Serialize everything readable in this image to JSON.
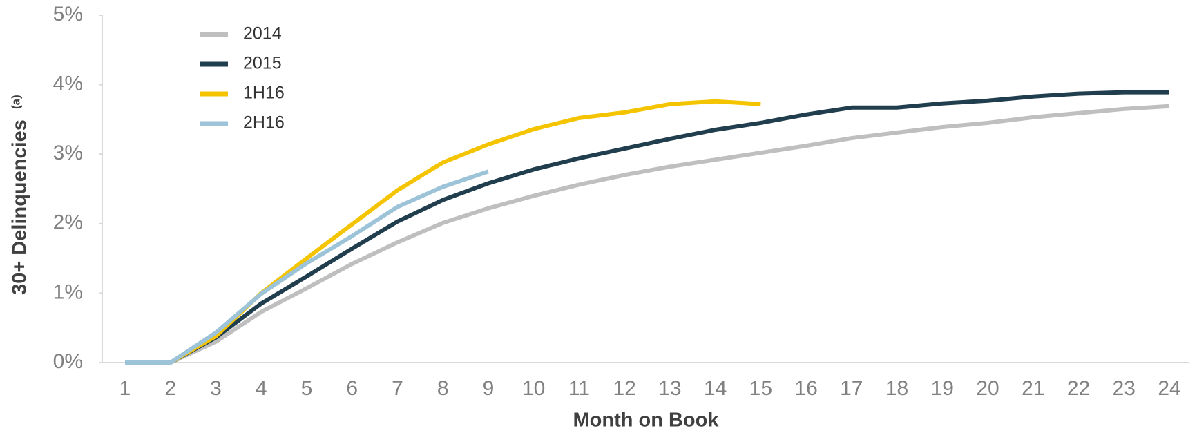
{
  "chart_data": {
    "type": "line",
    "xlabel": "Month on Book",
    "ylabel": "30+ Delinquencies",
    "ylabel_note": "(a)",
    "categories": [
      "1",
      "2",
      "3",
      "4",
      "5",
      "6",
      "7",
      "8",
      "9",
      "10",
      "11",
      "12",
      "13",
      "14",
      "15",
      "16",
      "17",
      "18",
      "19",
      "20",
      "21",
      "22",
      "23",
      "24"
    ],
    "series": [
      {
        "name": "2014",
        "color": "#bfbfbf",
        "values": [
          0,
          0,
          0.3,
          0.73,
          1.07,
          1.42,
          1.73,
          2.01,
          2.22,
          2.4,
          2.56,
          2.7,
          2.82,
          2.92,
          3.02,
          3.12,
          3.23,
          3.31,
          3.39,
          3.45,
          3.53,
          3.59,
          3.65,
          3.69
        ]
      },
      {
        "name": "2015",
        "color": "#213e4e",
        "values": [
          0,
          0,
          0.36,
          0.85,
          1.24,
          1.64,
          2.03,
          2.34,
          2.58,
          2.78,
          2.94,
          3.08,
          3.22,
          3.35,
          3.45,
          3.57,
          3.67,
          3.67,
          3.73,
          3.77,
          3.83,
          3.87,
          3.89,
          3.89
        ]
      },
      {
        "name": "1H16",
        "color": "#f5c400",
        "values": [
          0,
          0,
          0.38,
          1.0,
          1.5,
          1.99,
          2.48,
          2.88,
          3.14,
          3.36,
          3.52,
          3.6,
          3.72,
          3.76,
          3.72,
          null,
          null,
          null,
          null,
          null,
          null,
          null,
          null,
          null
        ]
      },
      {
        "name": "2H16",
        "color": "#9dc3d8",
        "values": [
          0,
          0,
          0.43,
          0.99,
          1.43,
          1.82,
          2.24,
          2.53,
          2.75,
          null,
          null,
          null,
          null,
          null,
          null,
          null,
          null,
          null,
          null,
          null,
          null,
          null,
          null,
          null
        ]
      }
    ],
    "ylim": [
      0,
      5
    ],
    "yticks": [
      {
        "value": 0,
        "label": "0%"
      },
      {
        "value": 1,
        "label": "1%"
      },
      {
        "value": 2,
        "label": "2%"
      },
      {
        "value": 3,
        "label": "3%"
      },
      {
        "value": 4,
        "label": "4%"
      },
      {
        "value": 5,
        "label": "5%"
      }
    ],
    "grid": false,
    "legend": "upper left"
  }
}
